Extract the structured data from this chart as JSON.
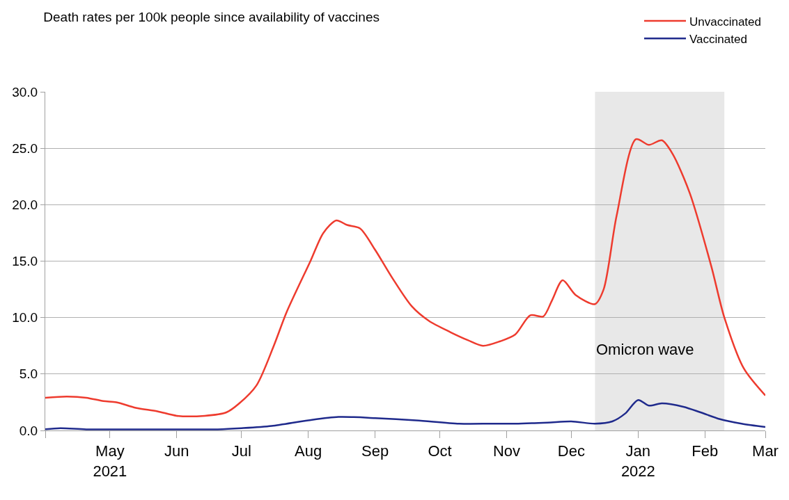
{
  "chart_data": {
    "type": "line",
    "title": "Death rates per 100k people since availability of vaccines",
    "xlim": [
      "2021-04-01",
      "2022-03-01"
    ],
    "xticks": [
      {
        "value": "2021-04-01",
        "label": null
      },
      {
        "value": "2021-05-01",
        "label": "May\n2021"
      },
      {
        "value": "2021-06-01",
        "label": "Jun"
      },
      {
        "value": "2021-07-01",
        "label": "Jul"
      },
      {
        "value": "2021-08-01",
        "label": "Aug"
      },
      {
        "value": "2021-09-01",
        "label": "Sep"
      },
      {
        "value": "2021-10-01",
        "label": "Oct"
      },
      {
        "value": "2021-11-01",
        "label": "Nov"
      },
      {
        "value": "2021-12-01",
        "label": "Dec"
      },
      {
        "value": "2022-01-01",
        "label": "Jan\n2022"
      },
      {
        "value": "2022-02-01",
        "label": "Feb"
      },
      {
        "value": "2022-03-01",
        "label": "Mar"
      }
    ],
    "ylim": [
      0,
      30
    ],
    "yticks": [
      {
        "value": 0,
        "label": "0.0"
      },
      {
        "value": 5,
        "label": "5.0"
      },
      {
        "value": 10,
        "label": "10.0"
      },
      {
        "value": 15,
        "label": "15.0"
      },
      {
        "value": 20,
        "label": "20.0"
      },
      {
        "value": 25,
        "label": "25.0"
      },
      {
        "value": 30,
        "label": "30.0"
      }
    ],
    "grid": "y",
    "legend": "top right",
    "line_style": "solid",
    "marker": "none",
    "bands": [
      {
        "axis": "x",
        "from": "2021-12-12",
        "to": "2022-02-10",
        "label": "Omicron wave",
        "color": "#e8e8e8"
      }
    ],
    "series": [
      {
        "name": "Unvaccinated",
        "color": "#ee3b2e",
        "x": [
          "2021-04-01",
          "2021-04-11",
          "2021-04-20",
          "2021-04-28",
          "2021-05-04",
          "2021-05-13",
          "2021-05-23",
          "2021-06-01",
          "2021-06-14",
          "2021-06-24",
          "2021-06-30",
          "2021-07-08",
          "2021-07-16",
          "2021-07-22",
          "2021-08-02",
          "2021-08-08",
          "2021-08-14",
          "2021-08-19",
          "2021-08-25",
          "2021-09-01",
          "2021-09-09",
          "2021-09-18",
          "2021-09-26",
          "2021-10-06",
          "2021-10-14",
          "2021-10-21",
          "2021-10-29",
          "2021-11-05",
          "2021-11-12",
          "2021-11-18",
          "2021-11-22",
          "2021-11-27",
          "2021-12-03",
          "2021-12-12",
          "2021-12-16",
          "2021-12-22",
          "2021-12-31",
          "2022-01-06",
          "2022-01-12",
          "2022-01-17",
          "2022-01-25",
          "2022-02-04",
          "2022-02-10",
          "2022-02-19",
          "2022-03-01"
        ],
        "values": [
          2.9,
          3.0,
          2.9,
          2.6,
          2.5,
          2.0,
          1.7,
          1.3,
          1.3,
          1.6,
          2.4,
          4.0,
          7.5,
          10.5,
          15.0,
          17.5,
          18.6,
          18.2,
          17.9,
          16.0,
          13.5,
          11.0,
          9.7,
          8.7,
          8.0,
          7.5,
          7.9,
          8.5,
          10.2,
          10.1,
          11.5,
          13.3,
          12.0,
          11.2,
          12.5,
          19.0,
          25.8,
          25.3,
          25.7,
          24.5,
          21.0,
          14.5,
          10.0,
          5.5,
          3.1
        ]
      },
      {
        "name": "Vaccinated",
        "color": "#1f2a8c",
        "x": [
          "2021-04-01",
          "2021-04-08",
          "2021-04-20",
          "2021-05-15",
          "2021-06-01",
          "2021-06-20",
          "2021-07-01",
          "2021-07-15",
          "2021-08-01",
          "2021-08-15",
          "2021-09-01",
          "2021-09-20",
          "2021-10-10",
          "2021-10-25",
          "2021-11-05",
          "2021-11-20",
          "2021-12-01",
          "2021-12-12",
          "2021-12-20",
          "2021-12-26",
          "2022-01-01",
          "2022-01-06",
          "2022-01-12",
          "2022-01-22",
          "2022-01-30",
          "2022-02-08",
          "2022-02-18",
          "2022-03-01"
        ],
        "values": [
          0.1,
          0.2,
          0.1,
          0.1,
          0.1,
          0.1,
          0.2,
          0.4,
          0.9,
          1.2,
          1.1,
          0.9,
          0.6,
          0.6,
          0.6,
          0.7,
          0.8,
          0.6,
          0.8,
          1.5,
          2.7,
          2.2,
          2.4,
          2.1,
          1.6,
          1.0,
          0.6,
          0.3
        ]
      }
    ]
  }
}
